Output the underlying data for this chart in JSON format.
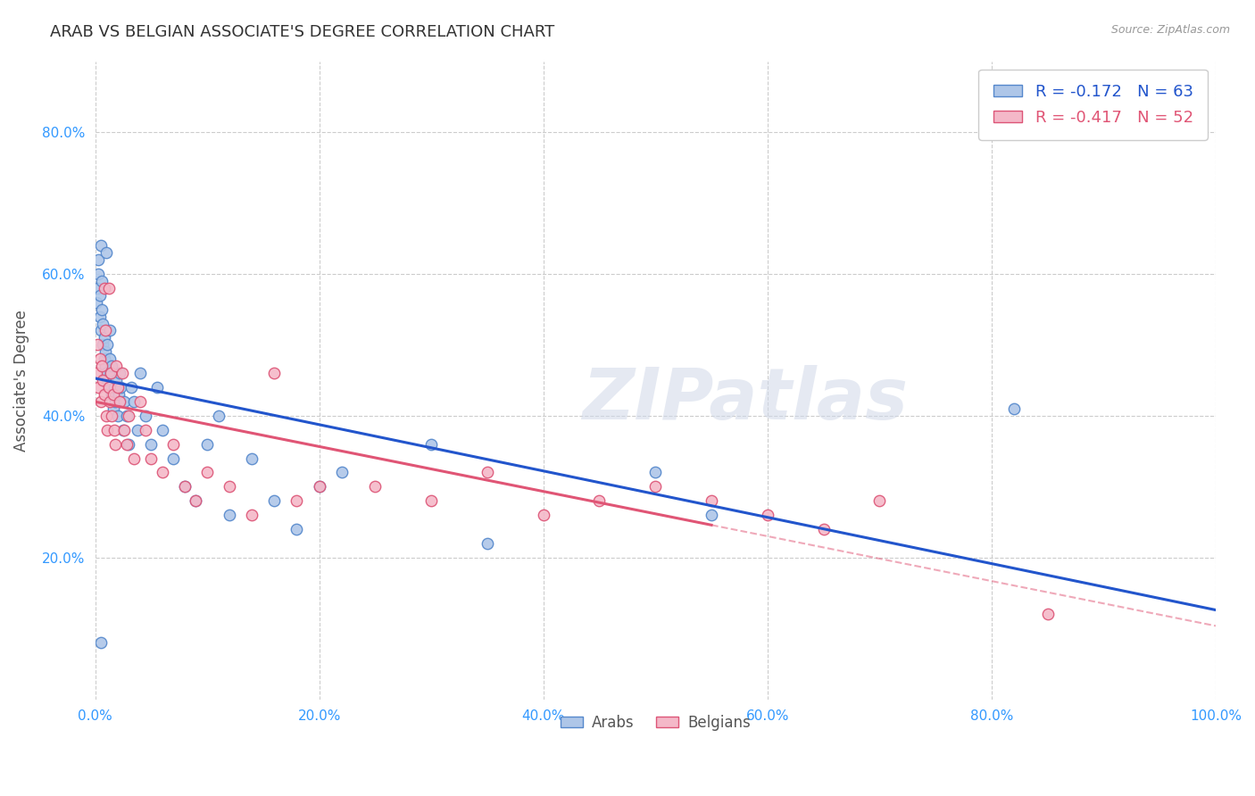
{
  "title": "ARAB VS BELGIAN ASSOCIATE'S DEGREE CORRELATION CHART",
  "source": "Source: ZipAtlas.com",
  "ylabel": "Associate's Degree",
  "watermark": "ZIPatlas",
  "xlim": [
    0.0,
    1.0
  ],
  "ylim": [
    0.0,
    0.9
  ],
  "xticks": [
    0.0,
    0.2,
    0.4,
    0.6,
    0.8,
    1.0
  ],
  "xtick_labels": [
    "0.0%",
    "20.0%",
    "40.0%",
    "60.0%",
    "80.0%",
    "100.0%"
  ],
  "yticks": [
    0.2,
    0.4,
    0.6,
    0.8
  ],
  "ytick_labels": [
    "20.0%",
    "40.0%",
    "60.0%",
    "80.0%"
  ],
  "arab_color": "#aec6e8",
  "belgian_color": "#f4b8c8",
  "arab_edge_color": "#5588cc",
  "belgian_edge_color": "#dd5577",
  "trend_arab_color": "#2255cc",
  "trend_belgian_color": "#e05575",
  "legend_arab_R": "-0.172",
  "legend_arab_N": "63",
  "legend_belgian_R": "-0.417",
  "legend_belgian_N": "52",
  "arab_x": [
    0.001,
    0.002,
    0.003,
    0.003,
    0.004,
    0.004,
    0.005,
    0.005,
    0.006,
    0.006,
    0.007,
    0.007,
    0.008,
    0.008,
    0.009,
    0.009,
    0.01,
    0.01,
    0.011,
    0.011,
    0.012,
    0.013,
    0.013,
    0.014,
    0.015,
    0.015,
    0.016,
    0.017,
    0.018,
    0.019,
    0.02,
    0.021,
    0.022,
    0.023,
    0.025,
    0.026,
    0.028,
    0.03,
    0.032,
    0.035,
    0.038,
    0.04,
    0.045,
    0.05,
    0.055,
    0.06,
    0.07,
    0.08,
    0.09,
    0.1,
    0.11,
    0.12,
    0.14,
    0.16,
    0.18,
    0.2,
    0.22,
    0.3,
    0.35,
    0.5,
    0.55,
    0.82,
    0.005
  ],
  "arab_y": [
    0.56,
    0.58,
    0.6,
    0.62,
    0.54,
    0.57,
    0.52,
    0.64,
    0.59,
    0.55,
    0.5,
    0.53,
    0.48,
    0.51,
    0.47,
    0.49,
    0.46,
    0.63,
    0.45,
    0.5,
    0.44,
    0.48,
    0.52,
    0.46,
    0.43,
    0.47,
    0.41,
    0.44,
    0.42,
    0.45,
    0.4,
    0.43,
    0.46,
    0.44,
    0.38,
    0.42,
    0.4,
    0.36,
    0.44,
    0.42,
    0.38,
    0.46,
    0.4,
    0.36,
    0.44,
    0.38,
    0.34,
    0.3,
    0.28,
    0.36,
    0.4,
    0.26,
    0.34,
    0.28,
    0.24,
    0.3,
    0.32,
    0.36,
    0.22,
    0.32,
    0.26,
    0.41,
    0.08
  ],
  "belgian_x": [
    0.001,
    0.002,
    0.003,
    0.004,
    0.005,
    0.006,
    0.007,
    0.008,
    0.009,
    0.01,
    0.011,
    0.012,
    0.013,
    0.014,
    0.015,
    0.016,
    0.017,
    0.018,
    0.019,
    0.02,
    0.022,
    0.024,
    0.026,
    0.028,
    0.03,
    0.035,
    0.04,
    0.045,
    0.05,
    0.06,
    0.07,
    0.08,
    0.09,
    0.1,
    0.12,
    0.14,
    0.16,
    0.18,
    0.2,
    0.25,
    0.3,
    0.35,
    0.4,
    0.45,
    0.5,
    0.55,
    0.6,
    0.65,
    0.7,
    0.85,
    0.008,
    0.012
  ],
  "belgian_y": [
    0.46,
    0.5,
    0.44,
    0.48,
    0.42,
    0.47,
    0.45,
    0.43,
    0.52,
    0.4,
    0.38,
    0.44,
    0.42,
    0.46,
    0.4,
    0.43,
    0.38,
    0.36,
    0.47,
    0.44,
    0.42,
    0.46,
    0.38,
    0.36,
    0.4,
    0.34,
    0.42,
    0.38,
    0.34,
    0.32,
    0.36,
    0.3,
    0.28,
    0.32,
    0.3,
    0.26,
    0.46,
    0.28,
    0.3,
    0.3,
    0.28,
    0.32,
    0.26,
    0.28,
    0.3,
    0.28,
    0.26,
    0.24,
    0.28,
    0.12,
    0.58,
    0.58
  ],
  "marker_size": 80,
  "background_color": "#ffffff",
  "grid_color": "#cccccc"
}
